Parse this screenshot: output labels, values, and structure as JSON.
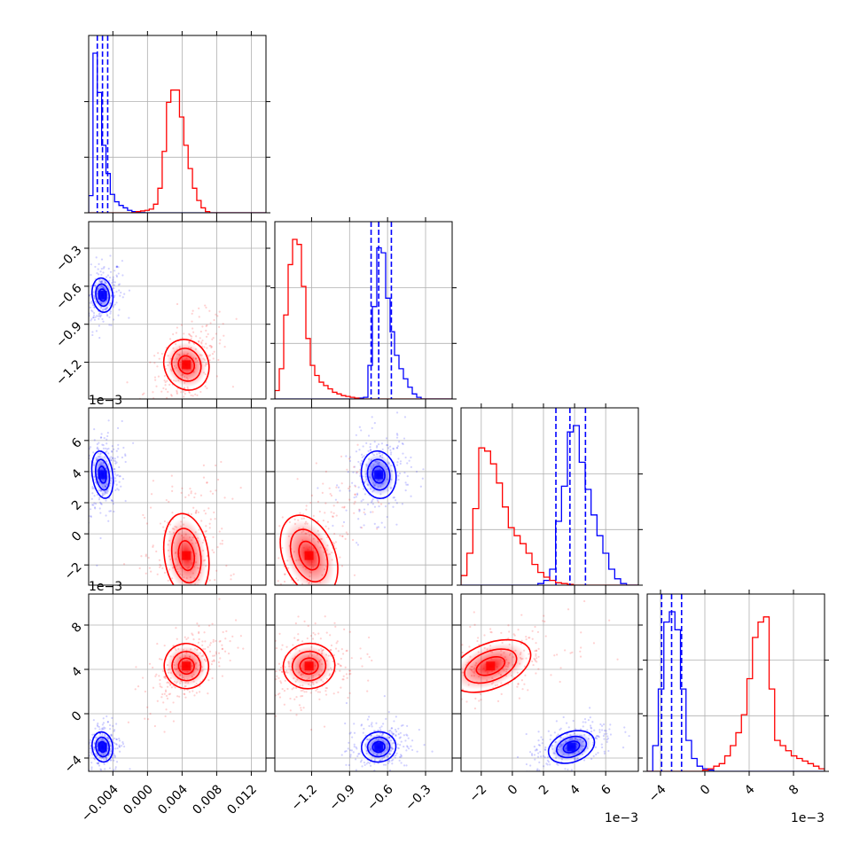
{
  "chart_data": {
    "type": "corner",
    "parameters": 4,
    "series": [
      {
        "name": "",
        "color": "#0000ff",
        "quantiles": [
          [
            -0.0058,
            -0.0052,
            -0.0046
          ],
          [
            -0.73,
            -0.67,
            -0.57
          ],
          [
            0.0028,
            0.0037,
            0.0047
          ],
          [
            -0.0039,
            -0.003,
            -0.0021
          ]
        ],
        "center": [
          -0.0052,
          -0.67,
          0.0038,
          -0.003
        ],
        "spread": [
          0.0007,
          0.08,
          0.0009,
          0.0008
        ]
      },
      {
        "name": "",
        "color": "#ff0000",
        "center": [
          0.0045,
          -1.22,
          -0.0014,
          0.0043
        ],
        "spread": [
          0.0015,
          0.12,
          0.0016,
          0.0012
        ]
      }
    ],
    "hist": [
      {
        "bins": [
          -0.0068,
          -0.0063,
          -0.0058,
          -0.0053,
          -0.0048,
          -0.0043,
          -0.0038,
          -0.0033,
          -0.0028,
          -0.0023,
          -0.0018,
          -0.0013,
          -0.0008,
          -0.0003,
          0.0002,
          0.0007,
          0.0012,
          0.0017,
          0.0022,
          0.0027,
          0.0032,
          0.0037,
          0.0042,
          0.0047,
          0.0052,
          0.0057,
          0.0062,
          0.0067,
          0.0072,
          0.0077,
          0.0082,
          0.0087,
          0.0092,
          0.0097,
          0.0102,
          0.0107,
          0.0112,
          0.0117,
          0.0122,
          0.0127,
          0.0132,
          0.0137
        ],
        "blue": [
          0.14,
          1.3,
          0.98,
          0.55,
          0.32,
          0.15,
          0.09,
          0.06,
          0.04,
          0.02,
          0.01,
          0.005,
          0.002,
          0,
          0,
          0,
          0,
          0,
          0,
          0,
          0,
          0,
          0,
          0,
          0,
          0,
          0,
          0,
          0,
          0,
          0,
          0,
          0,
          0,
          0,
          0,
          0,
          0,
          0,
          0,
          0
        ],
        "red": [
          0,
          0,
          0,
          0,
          0,
          0,
          0,
          0,
          0,
          0,
          0.002,
          0.01,
          0.015,
          0.02,
          0.03,
          0.07,
          0.2,
          0.5,
          0.9,
          1.0,
          1.0,
          0.78,
          0.55,
          0.36,
          0.2,
          0.1,
          0.04,
          0.01,
          0,
          0,
          0,
          0,
          0,
          0,
          0,
          0,
          0,
          0,
          0,
          0,
          0
        ]
      },
      {
        "bins": [
          -1.49,
          -1.455,
          -1.42,
          -1.385,
          -1.35,
          -1.315,
          -1.28,
          -1.245,
          -1.21,
          -1.175,
          -1.14,
          -1.105,
          -1.07,
          -1.035,
          -1.0,
          -0.965,
          -0.93,
          -0.895,
          -0.86,
          -0.825,
          -0.79,
          -0.755,
          -0.72,
          -0.685,
          -0.65,
          -0.615,
          -0.58,
          -0.545,
          -0.51,
          -0.475,
          -0.44,
          -0.405,
          -0.37,
          -0.335,
          -0.3,
          -0.265,
          -0.23,
          -0.195,
          -0.16,
          -0.125,
          -0.09
        ],
        "blue": [
          0,
          0,
          0,
          0,
          0,
          0,
          0,
          0,
          0,
          0,
          0,
          0,
          0,
          0,
          0,
          0,
          0,
          0,
          0,
          0.005,
          0.01,
          0.2,
          0.55,
          0.9,
          0.87,
          0.6,
          0.4,
          0.26,
          0.18,
          0.12,
          0.07,
          0.03,
          0.01,
          0,
          0,
          0,
          0,
          0,
          0,
          0
        ],
        "red": [
          0.05,
          0.18,
          0.5,
          0.8,
          0.95,
          0.92,
          0.67,
          0.36,
          0.2,
          0.14,
          0.1,
          0.08,
          0.06,
          0.04,
          0.03,
          0.02,
          0.015,
          0.01,
          0.005,
          0,
          0,
          0,
          0,
          0,
          0,
          0,
          0,
          0,
          0,
          0,
          0,
          0,
          0,
          0,
          0,
          0,
          0,
          0,
          0,
          0
        ]
      },
      {
        "bins": [
          -0.0033,
          -0.00292,
          -0.00254,
          -0.00216,
          -0.00178,
          -0.0014,
          -0.00102,
          -0.00064,
          -0.00026,
          0.00012,
          0.0005,
          0.00088,
          0.00126,
          0.00164,
          0.00202,
          0.0024,
          0.00278,
          0.00316,
          0.00354,
          0.00392,
          0.0043,
          0.00468,
          0.00506,
          0.00544,
          0.00582,
          0.0062,
          0.00658,
          0.00696,
          0.00734,
          0.00772,
          0.0081
        ],
        "blue": [
          0,
          0,
          0,
          0,
          0,
          0,
          0,
          0,
          0,
          0,
          0,
          0,
          0,
          0.01,
          0.03,
          0.1,
          0.4,
          0.62,
          0.96,
          1.0,
          0.77,
          0.6,
          0.44,
          0.31,
          0.2,
          0.1,
          0.04,
          0.01,
          0,
          0
        ],
        "red": [
          0.06,
          0.2,
          0.48,
          0.86,
          0.84,
          0.76,
          0.64,
          0.49,
          0.36,
          0.31,
          0.26,
          0.2,
          0.13,
          0.08,
          0.05,
          0.03,
          0.015,
          0.01,
          0.005,
          0,
          0,
          0,
          0,
          0,
          0,
          0,
          0,
          0,
          0,
          0
        ]
      },
      {
        "bins": [
          -0.0052,
          -0.0047,
          -0.0042,
          -0.0037,
          -0.0032,
          -0.0027,
          -0.0022,
          -0.0017,
          -0.0012,
          -0.0007,
          -0.0002,
          0.0003,
          0.0008,
          0.0013,
          0.0018,
          0.0023,
          0.0028,
          0.0033,
          0.0038,
          0.0043,
          0.0048,
          0.0053,
          0.0058,
          0.0063,
          0.0068,
          0.0073,
          0.0078,
          0.0083,
          0.0088,
          0.0093,
          0.0098,
          0.0103,
          0.0108
        ],
        "blue": [
          0,
          0.1,
          0.32,
          0.58,
          0.62,
          0.55,
          0.32,
          0.12,
          0.05,
          0.02,
          0.01,
          0.005,
          0,
          0,
          0,
          0,
          0,
          0,
          0,
          0,
          0,
          0,
          0,
          0,
          0,
          0,
          0,
          0,
          0,
          0,
          0,
          0
        ],
        "red": [
          0,
          0,
          0,
          0,
          0,
          0,
          0,
          0,
          0,
          0,
          0.005,
          0.01,
          0.02,
          0.03,
          0.06,
          0.1,
          0.15,
          0.22,
          0.36,
          0.52,
          0.58,
          0.6,
          0.32,
          0.12,
          0.1,
          0.08,
          0.06,
          0.05,
          0.04,
          0.03,
          0.02,
          0.01
        ]
      }
    ],
    "axes": [
      {
        "range": [
          -0.0068,
          0.0137
        ],
        "ticks": [
          -0.004,
          0.0,
          0.004,
          0.008,
          0.012
        ],
        "ticklabels": [
          "−0.004",
          "0.000",
          "0.004",
          "0.008",
          "0.012"
        ],
        "offset": ""
      },
      {
        "range": [
          -1.49,
          -0.09
        ],
        "ticks": [
          -1.2,
          -0.9,
          -0.6,
          -0.3
        ],
        "ticklabels": [
          "−1.2",
          "−0.9",
          "−0.6",
          "−0.3"
        ],
        "offset": ""
      },
      {
        "range": [
          -0.0033,
          0.0081
        ],
        "ticks": [
          -0.002,
          0.0,
          0.002,
          0.004,
          0.006
        ],
        "ticklabels": [
          "−2",
          "0",
          "2",
          "4",
          "6"
        ],
        "offset": "1e−3"
      },
      {
        "range": [
          -0.0052,
          0.0108
        ],
        "ticks": [
          -0.004,
          0.0,
          0.004,
          0.008
        ],
        "ticklabels": [
          "−4",
          "0",
          "4",
          "8"
        ],
        "offset": "1e−3"
      }
    ],
    "grid": true
  }
}
